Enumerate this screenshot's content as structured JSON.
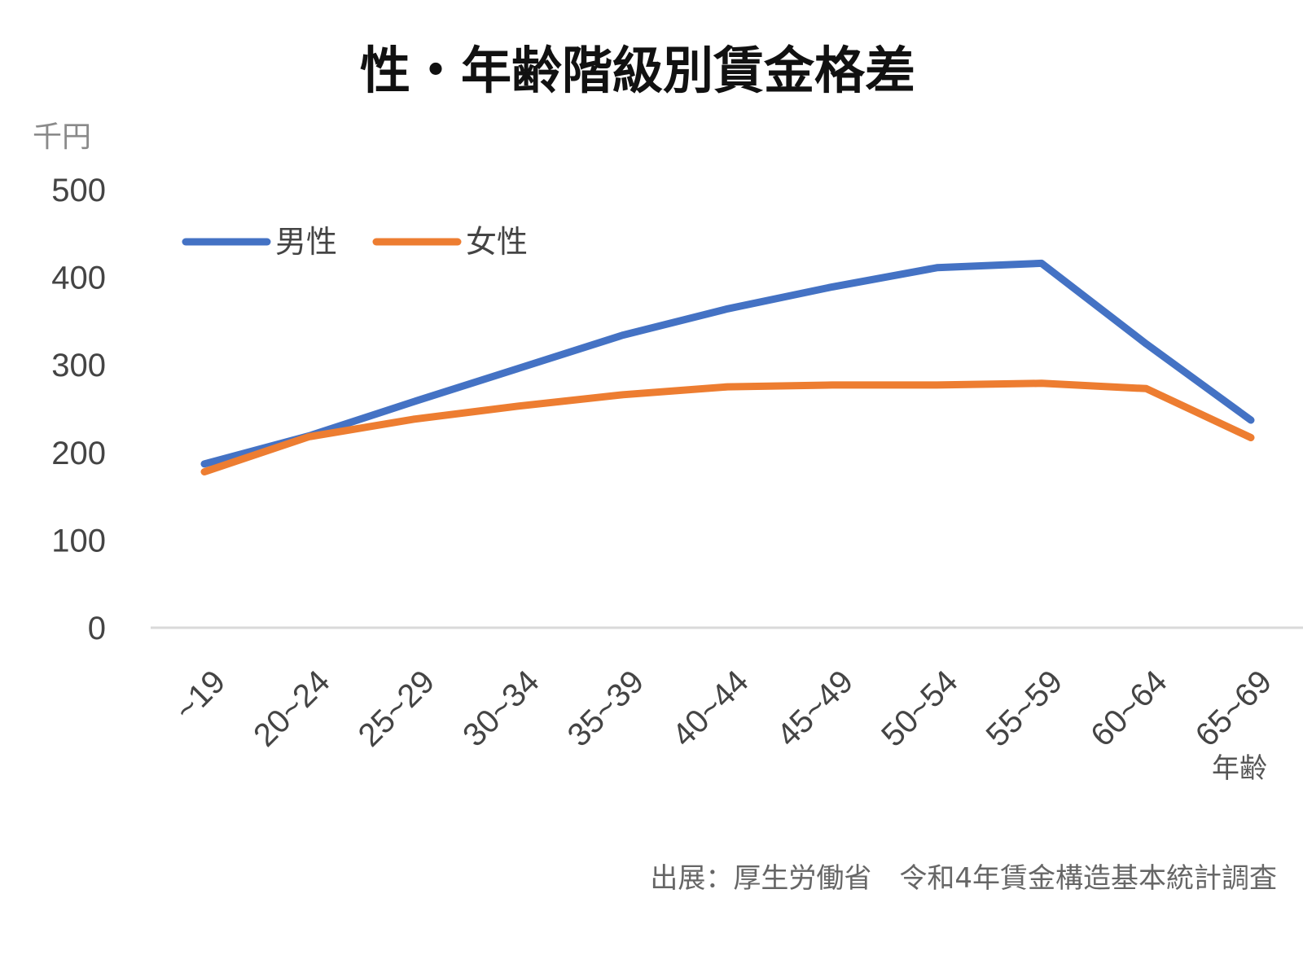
{
  "chart_data": {
    "type": "line",
    "title": "性・年齢階級別賃金格差",
    "ylabel": "千円",
    "xlabel": "年齢",
    "ylim": [
      0,
      500
    ],
    "yticks": [
      0,
      100,
      200,
      300,
      400,
      500
    ],
    "grid": false,
    "legend_position": "top-left",
    "categories": [
      "~19",
      "20~24",
      "25~29",
      "30~34",
      "35~39",
      "40~44",
      "45~49",
      "50~54",
      "55~59",
      "60~64",
      "65~69"
    ],
    "series": [
      {
        "name": "男性",
        "color": "#4472C4",
        "values": [
          187,
          219,
          258,
          296,
          334,
          364,
          389,
          411,
          416,
          324,
          237
        ]
      },
      {
        "name": "女性",
        "color": "#ED7D31",
        "values": [
          178,
          218,
          238,
          253,
          266,
          275,
          277,
          277,
          279,
          273,
          217
        ]
      }
    ],
    "source": "出展：厚生労働省　令和4年賃金構造基本統計調査"
  }
}
